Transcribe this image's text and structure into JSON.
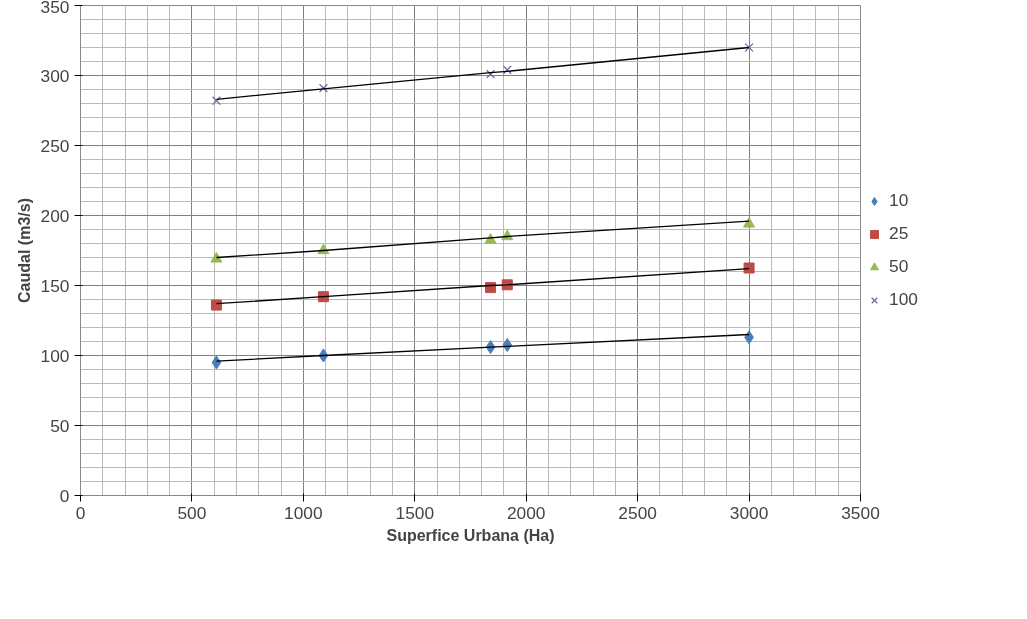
{
  "chart_data": {
    "type": "scatter",
    "xlabel": "Superfice Urbana (Ha)",
    "ylabel": "Caudal (m3/s)",
    "xlim": [
      0,
      3500
    ],
    "xticks": [
      0,
      500,
      1000,
      1500,
      2000,
      2500,
      3000,
      3500
    ],
    "ylim": [
      0,
      350
    ],
    "yticks": [
      0,
      50,
      100,
      150,
      200,
      250,
      300,
      350
    ],
    "grid": true,
    "legend": "right",
    "x": [
      610,
      1090,
      1840,
      1915,
      3000
    ],
    "series": [
      {
        "name": "10",
        "color": "#4a7ebb",
        "marker": "diamond",
        "values": [
          95,
          100,
          106,
          107.5,
          113
        ]
      },
      {
        "name": "25",
        "color": "#be4b48",
        "marker": "square",
        "values": [
          136,
          142,
          148.5,
          150.5,
          162.5
        ]
      },
      {
        "name": "50",
        "color": "#98b954",
        "marker": "triangle",
        "values": [
          169,
          175,
          182.5,
          185,
          194
        ]
      },
      {
        "name": "100",
        "color": "#7d60a0",
        "marker": "cross",
        "values": [
          282,
          291,
          301,
          304,
          320
        ]
      },
      {
        "type": "line",
        "color": "#000000",
        "values": [
          96,
          100,
          106,
          106.5,
          115
        ]
      },
      {
        "type": "line",
        "color": "#000000",
        "values": [
          137,
          142,
          150,
          150.5,
          162
        ]
      },
      {
        "type": "line",
        "color": "#000000",
        "values": [
          170,
          175,
          184,
          185,
          196
        ]
      },
      {
        "type": "line",
        "color": "#000000",
        "values": [
          283,
          290.5,
          302,
          303,
          320
        ]
      }
    ]
  }
}
